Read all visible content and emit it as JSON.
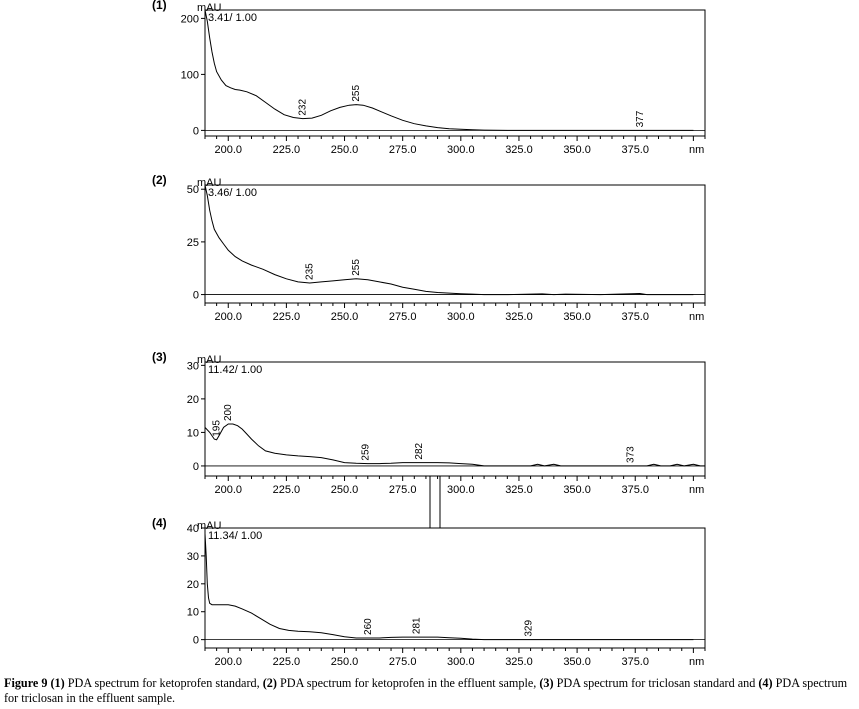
{
  "chart_data": [
    {
      "type": "line",
      "panel_label": "(1)",
      "ylabel": "mAU",
      "header": "3.41/ 1.00",
      "xlabel": "nm",
      "xlim": [
        190,
        405
      ],
      "ylim": [
        -10,
        215
      ],
      "xticks": [
        "200.0",
        "225.0",
        "250.0",
        "275.0",
        "300.0",
        "325.0",
        "350.0",
        "375.0"
      ],
      "yticks": [
        "0",
        "100",
        "200"
      ],
      "series": [
        {
          "x": [
            190,
            191,
            192,
            193,
            194,
            195,
            197,
            199,
            201,
            203,
            205,
            208,
            212,
            216,
            220,
            224,
            228,
            232,
            236,
            240,
            244,
            248,
            252,
            255,
            258,
            262,
            266,
            270,
            275,
            280,
            285,
            290,
            295,
            300,
            305,
            310,
            320,
            340,
            360,
            380,
            400
          ],
          "values": [
            215,
            195,
            165,
            140,
            120,
            105,
            90,
            80,
            76,
            73,
            72,
            69,
            62,
            50,
            38,
            28,
            23,
            21,
            22,
            27,
            35,
            41,
            45,
            46,
            45,
            40,
            33,
            26,
            18,
            12,
            8,
            5,
            3,
            2,
            1,
            0.5,
            0,
            0,
            0,
            0,
            0
          ]
        }
      ],
      "peak_labels": [
        {
          "x": 232,
          "y": 21,
          "label": "232"
        },
        {
          "x": 255,
          "y": 46,
          "label": "255"
        },
        {
          "x": 377,
          "y": 0,
          "label": "377"
        }
      ]
    },
    {
      "type": "line",
      "panel_label": "(2)",
      "ylabel": "mAU",
      "header": "3.46/ 1.00",
      "xlabel": "nm",
      "xlim": [
        190,
        405
      ],
      "ylim": [
        -4,
        52
      ],
      "xticks": [
        "200.0",
        "225.0",
        "250.0",
        "275.0",
        "300.0",
        "325.0",
        "350.0",
        "375.0"
      ],
      "yticks": [
        "0",
        "25",
        "50"
      ],
      "series": [
        {
          "x": [
            190,
            191,
            192,
            193,
            194,
            196,
            198,
            200,
            203,
            206,
            210,
            215,
            220,
            225,
            230,
            235,
            240,
            245,
            250,
            255,
            260,
            265,
            270,
            275,
            280,
            285,
            290,
            295,
            300,
            305,
            310,
            320,
            335,
            340,
            345,
            360,
            377,
            380,
            400
          ],
          "values": [
            52,
            47,
            40,
            35,
            31,
            27,
            24,
            21,
            18,
            16,
            14,
            12,
            9.5,
            7.5,
            6,
            5.5,
            6,
            6.5,
            7,
            7.5,
            7,
            6,
            5,
            3.5,
            2.5,
            1.5,
            1,
            0.7,
            0.4,
            0.2,
            0,
            0,
            0.3,
            0,
            0.2,
            0,
            0.5,
            0,
            0
          ]
        }
      ],
      "peak_labels": [
        {
          "x": 235,
          "y": 5.5,
          "label": "235"
        },
        {
          "x": 255,
          "y": 7.5,
          "label": "255"
        }
      ]
    },
    {
      "type": "line",
      "panel_label": "(3)",
      "ylabel": "mAU",
      "header": "11.42/ 1.00",
      "xlabel": "nm",
      "xlim": [
        190,
        405
      ],
      "ylim": [
        -3,
        31
      ],
      "xticks": [
        "200.0",
        "225.0",
        "250.0",
        "275.0",
        "300.0",
        "325.0",
        "350.0",
        "375.0"
      ],
      "yticks": [
        "0",
        "10",
        "20",
        "30"
      ],
      "series": [
        {
          "x": [
            190,
            192,
            194,
            195,
            196,
            198,
            200,
            202,
            204,
            206,
            208,
            210,
            213,
            216,
            220,
            225,
            230,
            235,
            240,
            245,
            250,
            255,
            260,
            265,
            270,
            275,
            280,
            285,
            290,
            295,
            300,
            305,
            310,
            320,
            330,
            333,
            336,
            340,
            343,
            346,
            360,
            373,
            380,
            383,
            386,
            390,
            393,
            396,
            400,
            403,
            405
          ],
          "values": [
            11.5,
            10,
            8,
            7.8,
            9,
            11.5,
            12.5,
            12.5,
            12,
            11,
            9.5,
            8,
            6,
            4.5,
            3.8,
            3.3,
            3,
            2.8,
            2.5,
            1.8,
            1,
            0.8,
            0.7,
            0.7,
            0.8,
            1,
            1,
            1,
            1,
            0.9,
            0.7,
            0.5,
            0,
            0,
            0,
            0.5,
            0,
            0.5,
            0,
            0,
            0,
            0,
            0,
            0.5,
            0,
            0,
            0.5,
            0,
            0.5,
            0,
            0
          ]
        }
      ],
      "peak_labels": [
        {
          "x": 195,
          "y": 7.8,
          "label": "195"
        },
        {
          "x": 200,
          "y": 12.5,
          "label": "200"
        },
        {
          "x": 259,
          "y": 0.7,
          "label": "259"
        },
        {
          "x": 282,
          "y": 1,
          "label": "282"
        },
        {
          "x": 373,
          "y": 0,
          "label": "373"
        }
      ]
    },
    {
      "type": "line",
      "panel_label": "(4)",
      "ylabel": "mAU",
      "header": "11.34/ 1.00",
      "xlabel": "nm",
      "xlim": [
        190,
        405
      ],
      "ylim": [
        -3,
        40
      ],
      "xticks": [
        "200.0",
        "225.0",
        "250.0",
        "275.0",
        "300.0",
        "325.0",
        "350.0",
        "375.0"
      ],
      "yticks": [
        "0",
        "10",
        "20",
        "30",
        "40"
      ],
      "series": [
        {
          "x": [
            190,
            190.5,
            191,
            191.5,
            192,
            193,
            195,
            198,
            200,
            203,
            206,
            210,
            214,
            218,
            222,
            226,
            230,
            235,
            240,
            245,
            250,
            255,
            260,
            265,
            270,
            275,
            280,
            285,
            290,
            295,
            300,
            305,
            310,
            320,
            330,
            340,
            360,
            380,
            400
          ],
          "values": [
            38,
            30,
            20,
            15,
            13,
            12.5,
            12.5,
            12.5,
            12.5,
            12,
            11,
            9.5,
            7.5,
            5.5,
            4,
            3.3,
            3,
            2.8,
            2.5,
            1.8,
            1,
            0.6,
            0.6,
            0.6,
            0.8,
            0.9,
            0.9,
            0.9,
            0.9,
            0.7,
            0.5,
            0.2,
            0,
            0,
            0,
            0,
            0,
            0,
            0
          ]
        }
      ],
      "peak_labels": [
        {
          "x": 260,
          "y": 0.6,
          "label": "260"
        },
        {
          "x": 281,
          "y": 0.9,
          "label": "281"
        },
        {
          "x": 329,
          "y": 0,
          "label": "329"
        }
      ]
    }
  ],
  "caption": {
    "figure_label": "Figure 9",
    "parts": [
      {
        "bold": "(1)",
        "text": " PDA spectrum for ketoprofen standard, "
      },
      {
        "bold": "(2)",
        "text": " PDA spectrum for ketoprofen in the effluent sample, "
      },
      {
        "bold": "(3)",
        "text": " PDA spectrum for triclosan standard and "
      },
      {
        "bold": "(4)",
        "text": " PDA spectrum for triclosan in the effluent sample."
      }
    ]
  },
  "colors": {
    "line": "#000000",
    "axis": "#000000",
    "background": "#ffffff"
  }
}
